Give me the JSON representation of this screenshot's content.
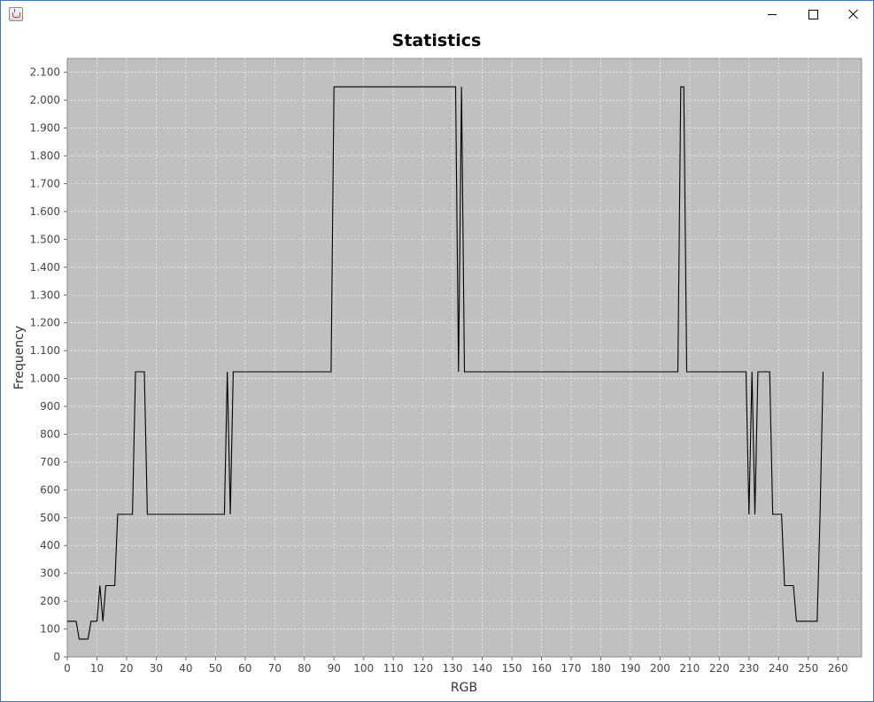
{
  "window": {
    "title": "",
    "icon": "java-cup-icon",
    "controls": [
      "minimize-icon",
      "maximize-icon",
      "close-icon"
    ]
  },
  "colors": {
    "plot_background": "#c0c0c0",
    "gridline": "#ffffff",
    "series_line": "#000000",
    "window_border": "#3c74c2"
  },
  "chart_data": {
    "type": "line",
    "title": "Statistics",
    "xlabel": "RGB",
    "ylabel": "Frequency",
    "xlim": [
      0,
      268
    ],
    "ylim": [
      0,
      2150
    ],
    "grid": true,
    "legend": "none",
    "x_ticks": [
      0,
      10,
      20,
      30,
      40,
      50,
      60,
      70,
      80,
      90,
      100,
      110,
      120,
      130,
      140,
      150,
      160,
      170,
      180,
      190,
      200,
      210,
      220,
      230,
      240,
      250,
      260
    ],
    "y_ticks": [
      0,
      100,
      200,
      300,
      400,
      500,
      600,
      700,
      800,
      900,
      1000,
      1100,
      1200,
      1300,
      1400,
      1500,
      1600,
      1700,
      1800,
      1900,
      2000,
      2100
    ],
    "y_tick_labels": [
      "0",
      "100",
      "200",
      "300",
      "400",
      "500",
      "600",
      "700",
      "800",
      "900",
      "1.000",
      "1.100",
      "1.200",
      "1.300",
      "1.400",
      "1.500",
      "1.600",
      "1.700",
      "1.800",
      "1.900",
      "2.000",
      "2.100"
    ],
    "series": [
      {
        "x": [
          0,
          3,
          4,
          7,
          8,
          10,
          11,
          12,
          13,
          16,
          17,
          22,
          23,
          26,
          27,
          53,
          54,
          55,
          56,
          89,
          90,
          131,
          132,
          133,
          134,
          206,
          207,
          208,
          209,
          229,
          230,
          231,
          232,
          233,
          234,
          237,
          238,
          241,
          242,
          245,
          246,
          253,
          254,
          255
        ],
        "y": [
          128,
          128,
          64,
          64,
          128,
          128,
          256,
          128,
          256,
          256,
          512,
          512,
          1024,
          1024,
          512,
          512,
          1024,
          512,
          1024,
          1024,
          2048,
          2048,
          1024,
          2048,
          1024,
          1024,
          2048,
          2048,
          1024,
          1024,
          512,
          1024,
          512,
          1024,
          1024,
          1024,
          512,
          512,
          256,
          256,
          128,
          128,
          512,
          1024
        ]
      }
    ]
  }
}
